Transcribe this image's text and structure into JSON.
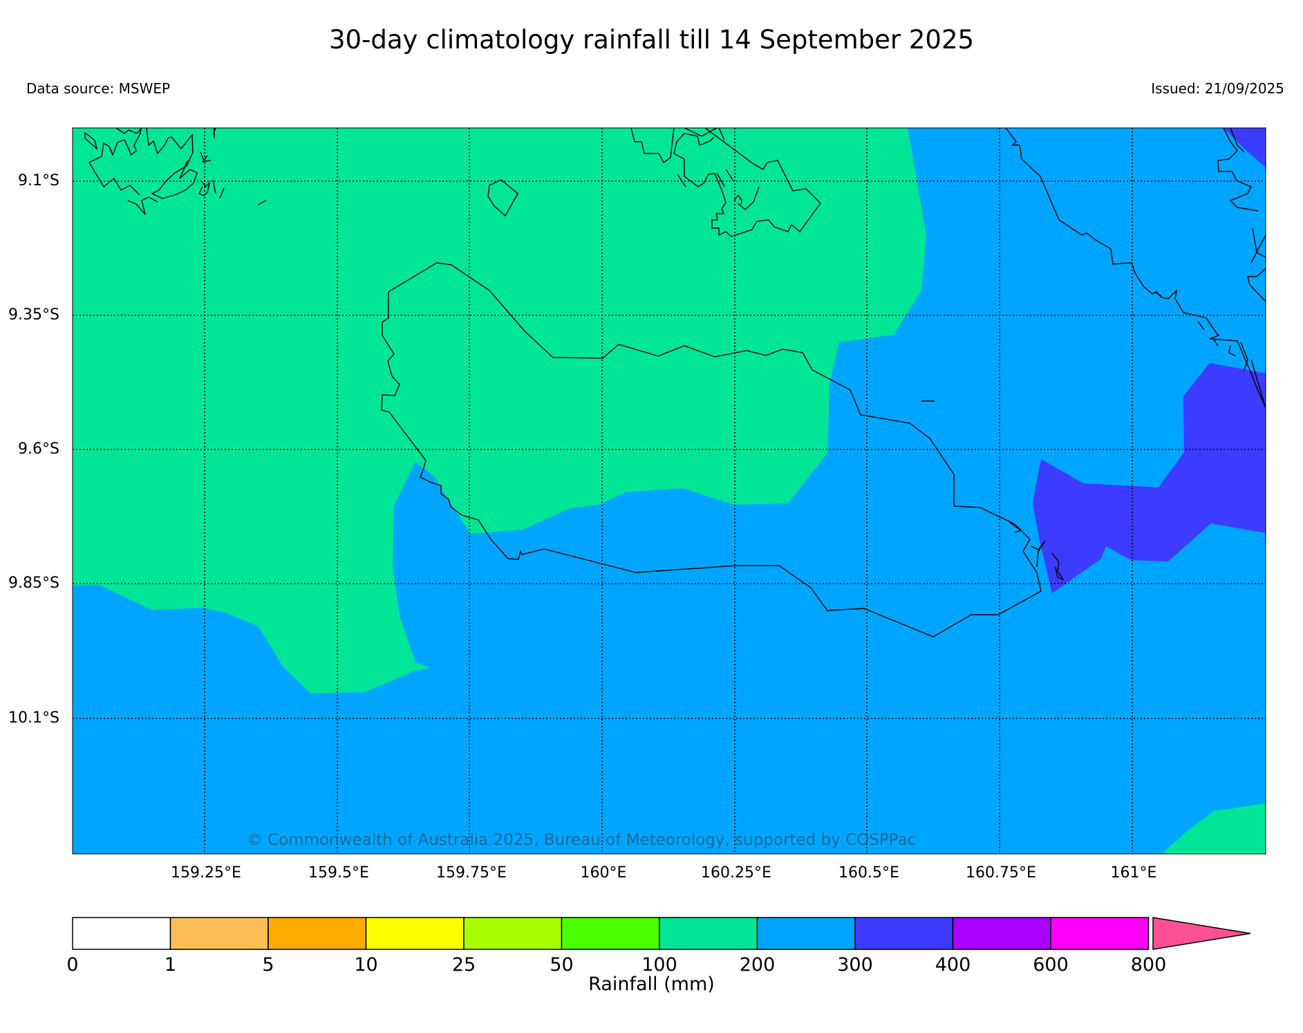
{
  "header": {
    "title": "30-day climatology rainfall till 14 September 2025",
    "data_source": "Data source: MSWEP",
    "issued": "Issued: 21/09/2025"
  },
  "map": {
    "lat_labels": [
      "9.1°S",
      "9.35°S",
      "9.6°S",
      "9.85°S",
      "10.1°S"
    ],
    "lon_labels": [
      "159.25°E",
      "159.5°E",
      "159.75°E",
      "160°E",
      "160.25°E",
      "160.5°E",
      "160.75°E",
      "161°E"
    ],
    "watermark": "© Commonwealth of Australia 2025, Bureau of Meteorology, supported by COSPPac",
    "zone_colors": {
      "z100_200": "#00e696",
      "z200_300": "#00a5ff",
      "z300_400": "#3c3cff"
    }
  },
  "colorbar": {
    "title": "Rainfall (mm)",
    "ticks": [
      "0",
      "1",
      "5",
      "10",
      "25",
      "50",
      "100",
      "200",
      "300",
      "400",
      "600",
      "800"
    ],
    "colors": [
      "#ffffff",
      "#ffbe55",
      "#ffaa00",
      "#ffff00",
      "#aaff00",
      "#4bff00",
      "#00e696",
      "#00a5ff",
      "#3c3cff",
      "#aa00ff",
      "#ff00ff",
      "#ff5096"
    ]
  }
}
